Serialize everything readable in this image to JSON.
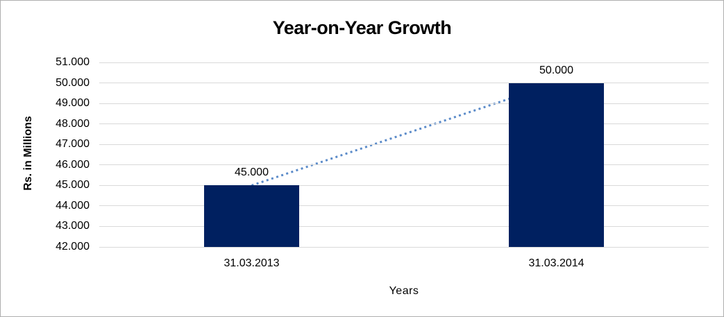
{
  "chart_data": {
    "type": "bar",
    "title": "Year-on-Year Growth",
    "xlabel": "Years",
    "ylabel": "Rs. in Millions",
    "categories": [
      "31.03.2013",
      "31.03.2014"
    ],
    "values": [
      45000,
      50000
    ],
    "value_labels": [
      "45.000",
      "50.000"
    ],
    "ylim": [
      42000,
      51000
    ],
    "yticks": [
      {
        "value": 42000,
        "label": "42.000"
      },
      {
        "value": 43000,
        "label": "43.000"
      },
      {
        "value": 44000,
        "label": "44.000"
      },
      {
        "value": 45000,
        "label": "45.000"
      },
      {
        "value": 46000,
        "label": "46.000"
      },
      {
        "value": 47000,
        "label": "47.000"
      },
      {
        "value": 48000,
        "label": "48.000"
      },
      {
        "value": 49000,
        "label": "49.000"
      },
      {
        "value": 50000,
        "label": "50.000"
      },
      {
        "value": 51000,
        "label": "51.000"
      }
    ],
    "grid": "horizontal",
    "legend": "none",
    "colors": {
      "bar": "#002060",
      "trendline": "#5b8bc9",
      "gridline": "#d9d9d9",
      "text": "#000000"
    },
    "trendline_style": "dotted"
  }
}
